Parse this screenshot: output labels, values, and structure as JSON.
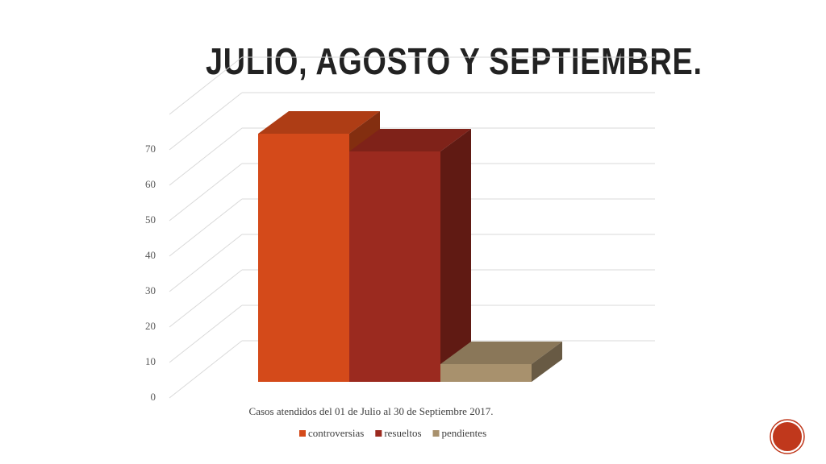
{
  "chart_data": {
    "type": "bar3d",
    "title": "JULIO, AGOSTO Y  SEPTIEMBRE.",
    "categories": [
      "Casos atendidos del 01 de Julio al 30 de Septiembre 2017."
    ],
    "series": [
      {
        "name": "controversias",
        "color": "#d44a1a",
        "values": [
          70
        ]
      },
      {
        "name": "resueltos",
        "color": "#9b2a1f",
        "values": [
          65
        ]
      },
      {
        "name": "pendientes",
        "color": "#a8916d",
        "values": [
          5
        ]
      }
    ],
    "ylim": [
      0,
      80
    ],
    "yticks": [
      0,
      10,
      20,
      30,
      40,
      50,
      60,
      70
    ],
    "grid": true,
    "legend": "bottom"
  }
}
